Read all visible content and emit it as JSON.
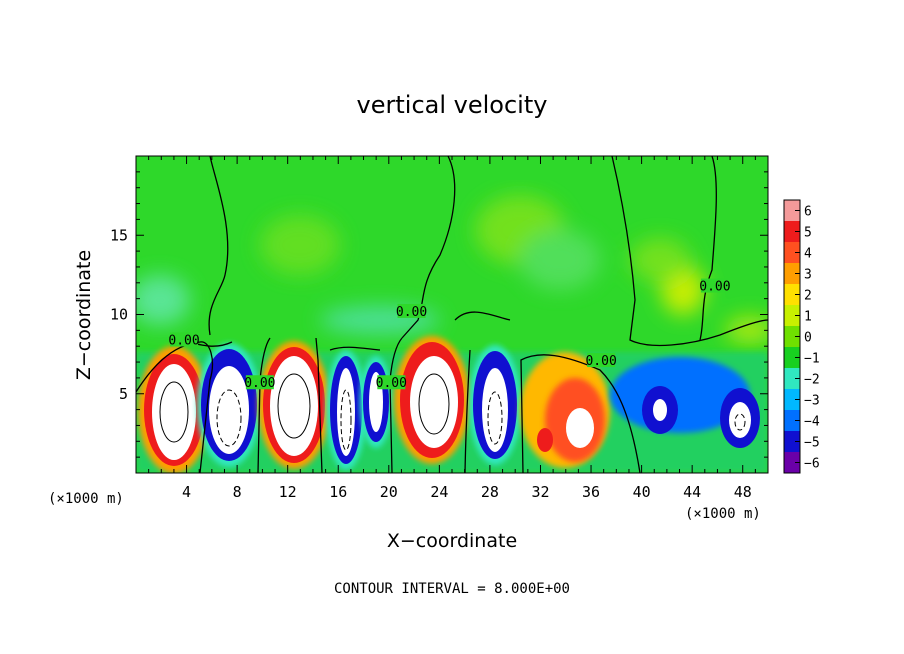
{
  "chart_data": {
    "type": "heatmap",
    "title": "vertical velocity",
    "xlabel": "X−coordinate",
    "ylabel": "Z−coordinate",
    "x_unit_label": "(×1000 m)",
    "x_unit_label_right": "(×1000 m)",
    "footer": "CONTOUR INTERVAL = 8.000E+00",
    "xlim": [
      0,
      50
    ],
    "ylim": [
      0,
      20
    ],
    "x_ticks": [
      4,
      8,
      12,
      16,
      20,
      24,
      28,
      32,
      36,
      40,
      44,
      48
    ],
    "y_ticks": [
      5,
      10,
      15
    ],
    "colorbar": {
      "ticks": [
        "6",
        "5",
        "4",
        "3",
        "2",
        "1",
        "0",
        "−1",
        "−2",
        "−3",
        "−4",
        "−5",
        "−6"
      ],
      "colors": [
        "#f49a9a",
        "#ee1c1c",
        "#ff5020",
        "#ff9e00",
        "#ffe000",
        "#c8f000",
        "#6fe000",
        "#18d020",
        "#30e8c0",
        "#00b8ff",
        "#0070ff",
        "#1010d0",
        "#6a00a8"
      ]
    },
    "contour_labels": [
      {
        "text": "0.00",
        "x": 3.8,
        "z": 8.3
      },
      {
        "text": "0.00",
        "x": 9.8,
        "z": 5.6
      },
      {
        "text": "0.00",
        "x": 20.2,
        "z": 5.6
      },
      {
        "text": "0.00",
        "x": 21.8,
        "z": 10.1
      },
      {
        "text": "0.00",
        "x": 36.8,
        "z": 7.0
      },
      {
        "text": "0.00",
        "x": 45.8,
        "z": 11.7
      }
    ],
    "cells": [
      {
        "x": 2.8,
        "z": 3.9,
        "w": 29,
        "dir": "up"
      },
      {
        "x": 7.3,
        "z": 4.0,
        "w": 27,
        "dir": "down"
      },
      {
        "x": 12.5,
        "z": 4.2,
        "w": 29,
        "dir": "up"
      },
      {
        "x": 16.5,
        "z": 3.8,
        "w": 18,
        "dir": "down"
      },
      {
        "x": 19.3,
        "z": 4.5,
        "w": 14,
        "dir": "down"
      },
      {
        "x": 23.8,
        "z": 4.6,
        "w": 30,
        "dir": "up"
      },
      {
        "x": 28.6,
        "z": 4.1,
        "w": 22,
        "dir": "down"
      },
      {
        "x": 35.3,
        "z": 3.3,
        "w": 14,
        "dir": "up"
      },
      {
        "x": 41.5,
        "z": 4.0,
        "w": 9,
        "dir": "down"
      },
      {
        "x": 47.5,
        "z": 4.1,
        "w": 11,
        "dir": "down"
      }
    ]
  }
}
